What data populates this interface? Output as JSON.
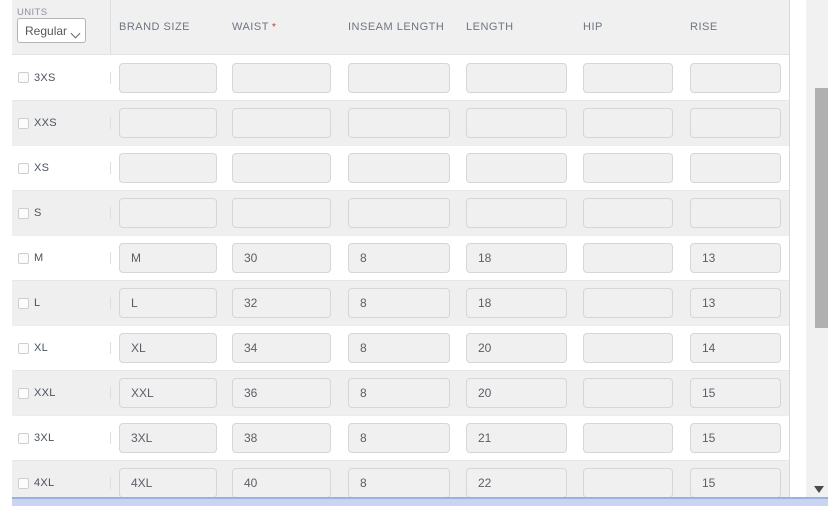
{
  "units": {
    "label": "UNITS",
    "value": "Regular"
  },
  "table": {
    "required_marker": "*",
    "columns": [
      {
        "label": "BRAND SIZE",
        "required": false
      },
      {
        "label": "WAIST",
        "required": true
      },
      {
        "label": "INSEAM LENGTH",
        "required": false
      },
      {
        "label": "LENGTH",
        "required": false
      },
      {
        "label": "HIP",
        "required": false
      },
      {
        "label": "RISE",
        "required": false
      }
    ],
    "rows": [
      {
        "size": "3XS",
        "checked": false,
        "values": [
          "",
          "",
          "",
          "",
          "",
          ""
        ]
      },
      {
        "size": "XXS",
        "checked": false,
        "values": [
          "",
          "",
          "",
          "",
          "",
          ""
        ]
      },
      {
        "size": "XS",
        "checked": false,
        "values": [
          "",
          "",
          "",
          "",
          "",
          ""
        ]
      },
      {
        "size": "S",
        "checked": false,
        "values": [
          "",
          "",
          "",
          "",
          "",
          ""
        ]
      },
      {
        "size": "M",
        "checked": false,
        "values": [
          "M",
          "30",
          "8",
          "18",
          "",
          "13"
        ]
      },
      {
        "size": "L",
        "checked": false,
        "values": [
          "L",
          "32",
          "8",
          "18",
          "",
          "13"
        ]
      },
      {
        "size": "XL",
        "checked": false,
        "values": [
          "XL",
          "34",
          "8",
          "20",
          "",
          "14"
        ]
      },
      {
        "size": "XXL",
        "checked": false,
        "values": [
          "XXL",
          "36",
          "8",
          "20",
          "",
          "15"
        ]
      },
      {
        "size": "3XL",
        "checked": false,
        "values": [
          "3XL",
          "38",
          "8",
          "21",
          "",
          "15"
        ]
      },
      {
        "size": "4XL",
        "checked": false,
        "values": [
          "4XL",
          "40",
          "8",
          "22",
          "",
          "15"
        ]
      }
    ]
  },
  "colors": {
    "header_bg": "#f0f0f0",
    "row_alt_bg": "#efefef",
    "required": "#b23b3b",
    "scrollbar_thumb": "#b0b0b0",
    "h_scrollbar_active": "#c8d4f2"
  }
}
